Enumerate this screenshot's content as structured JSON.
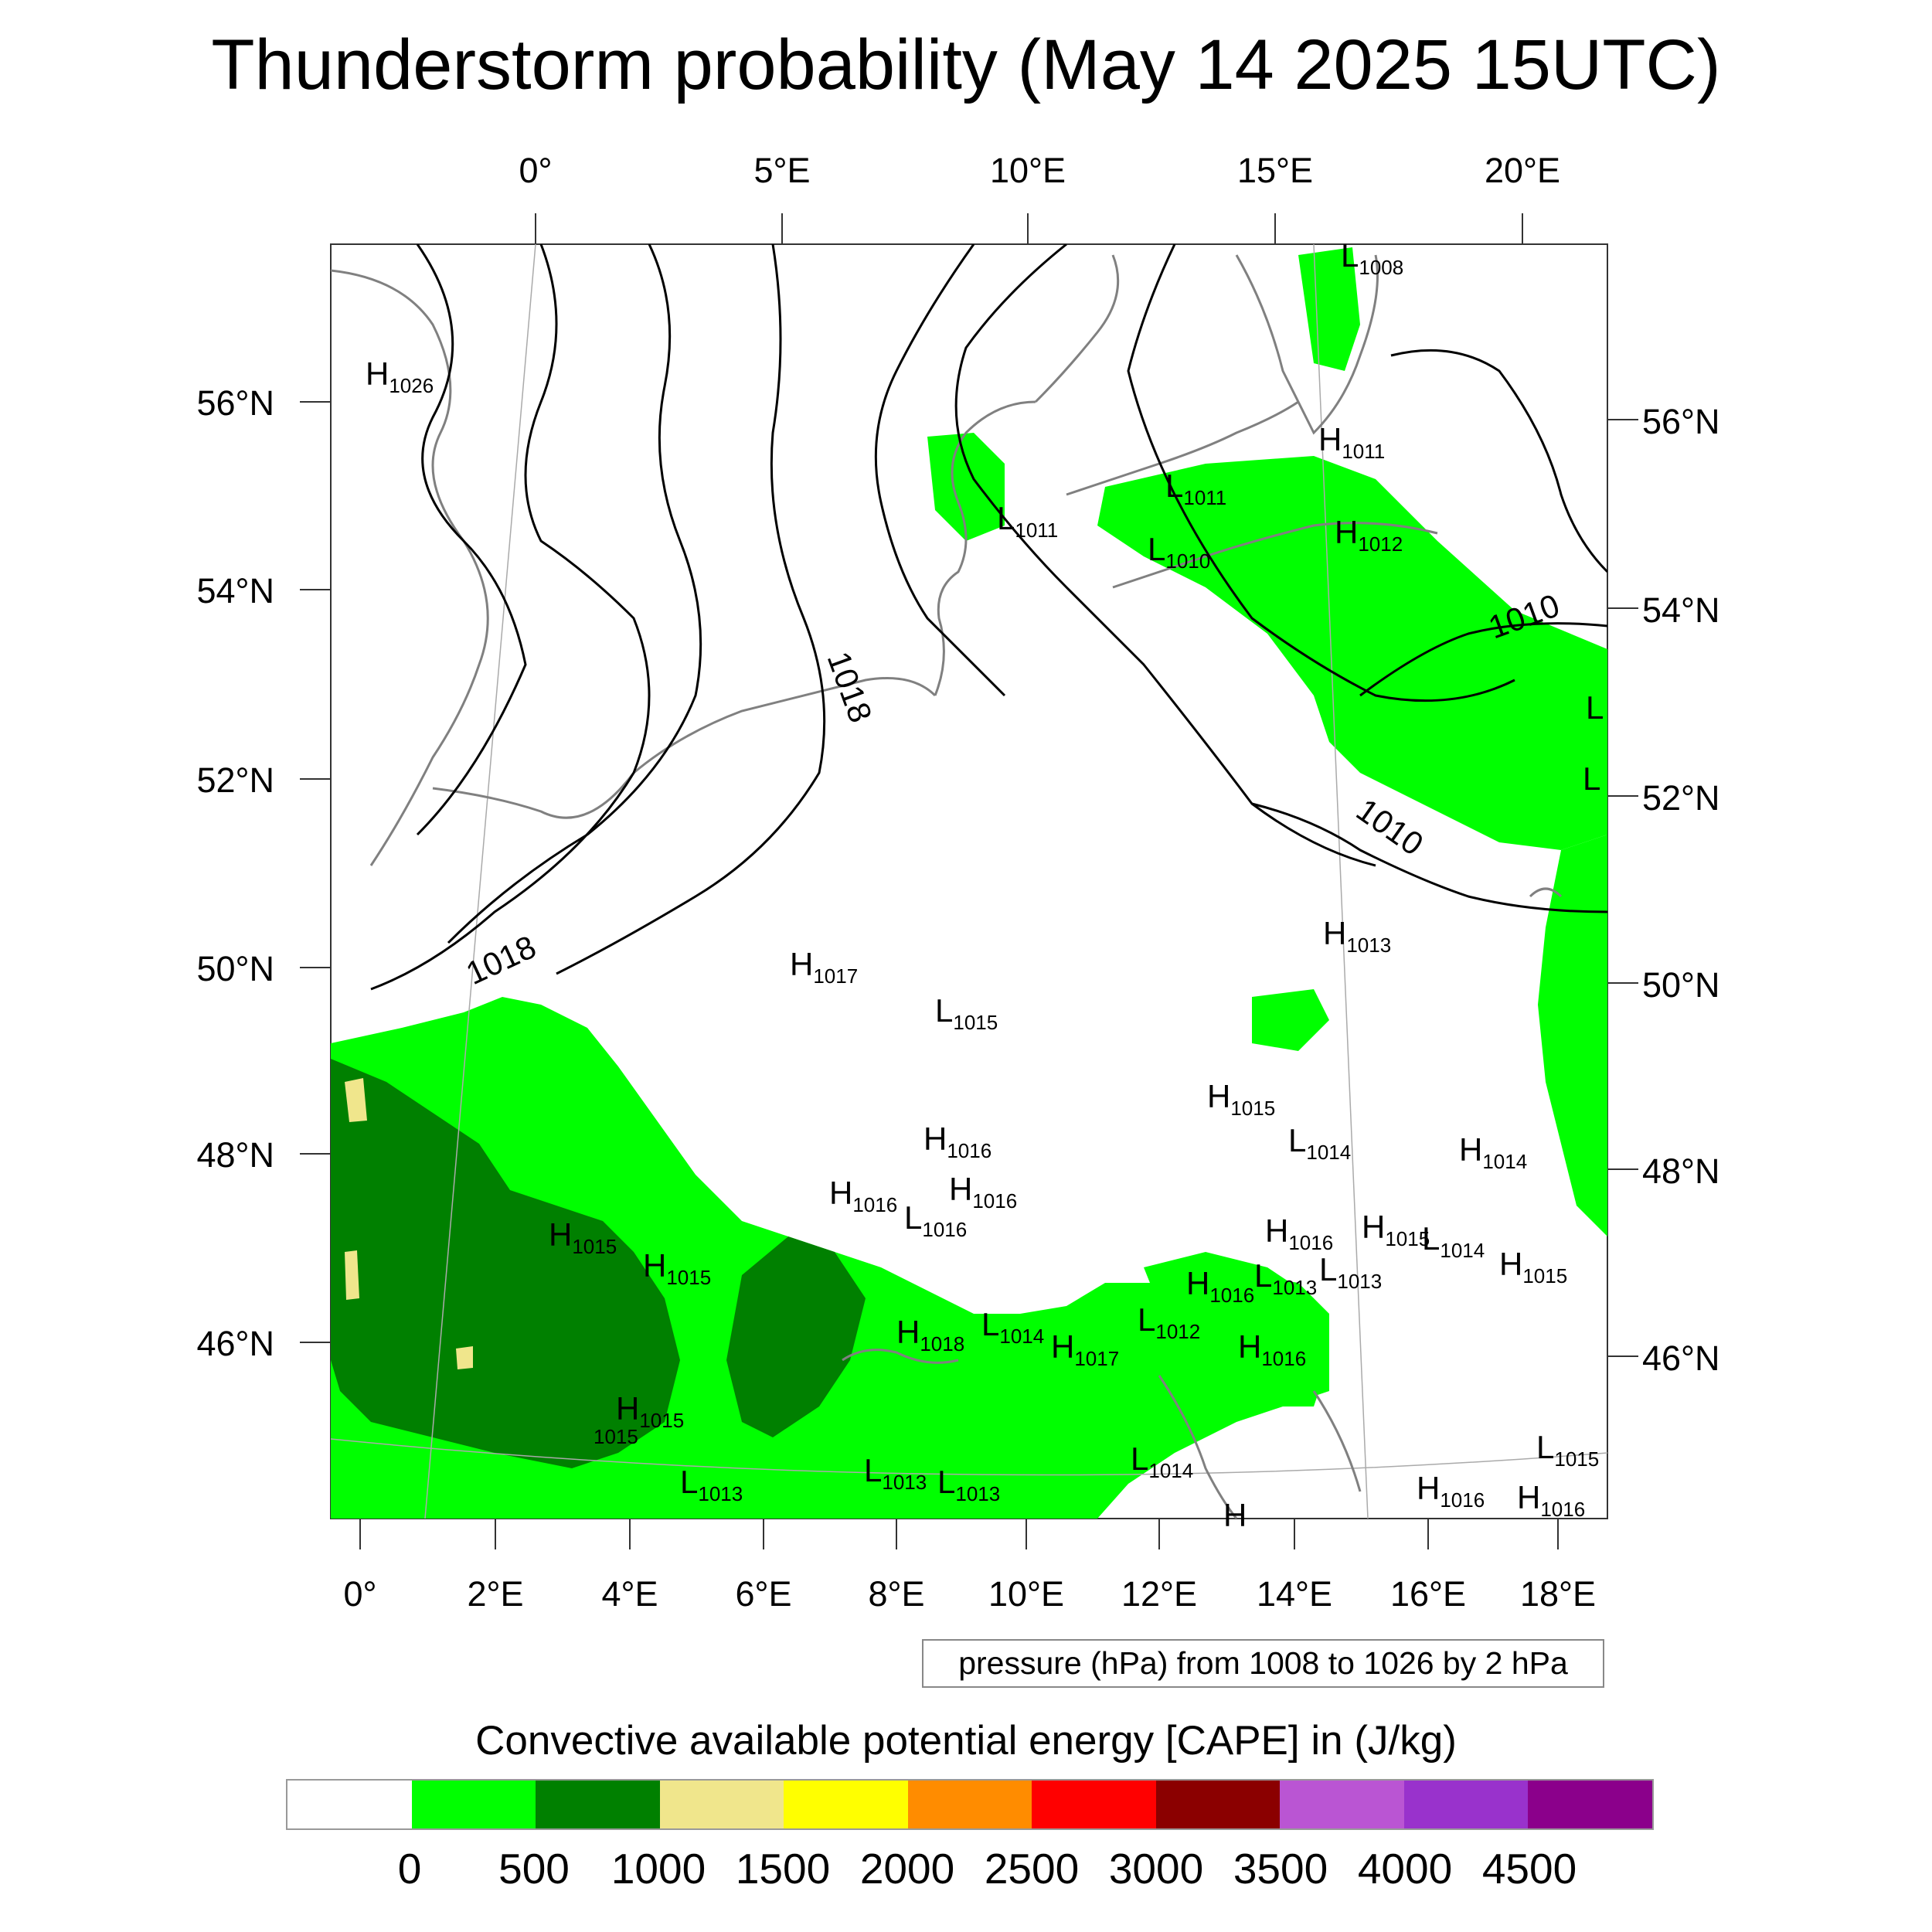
{
  "title": "Thunderstorm probability (May 14 2025 15UTC)",
  "top_lon_labels": [
    "0°",
    "5°E",
    "10°E",
    "15°E",
    "20°E"
  ],
  "bottom_lon_labels": [
    "0°",
    "2°E",
    "4°E",
    "6°E",
    "8°E",
    "10°E",
    "12°E",
    "14°E",
    "16°E",
    "18°E"
  ],
  "left_lat_labels": [
    "56°N",
    "54°N",
    "52°N",
    "50°N",
    "48°N",
    "46°N"
  ],
  "right_lat_labels": [
    "56°N",
    "54°N",
    "52°N",
    "50°N",
    "48°N",
    "46°N"
  ],
  "isobar_labels": [
    "1018",
    "1018",
    "1010",
    "1010"
  ],
  "pressure_centers": [
    {
      "letter": "H",
      "value": "1026"
    },
    {
      "letter": "L",
      "value": "1008"
    },
    {
      "letter": "H",
      "value": "1011"
    },
    {
      "letter": "L",
      "value": "1011"
    },
    {
      "letter": "L",
      "value": "1011"
    },
    {
      "letter": "L",
      "value": "1010"
    },
    {
      "letter": "H",
      "value": "1012"
    },
    {
      "letter": "H",
      "value": "1013"
    },
    {
      "letter": "H",
      "value": "1017"
    },
    {
      "letter": "L",
      "value": "1015"
    },
    {
      "letter": "H",
      "value": "1015"
    },
    {
      "letter": "L",
      "value": "1014"
    },
    {
      "letter": "H",
      "value": "1016"
    },
    {
      "letter": "H",
      "value": "1014"
    },
    {
      "letter": "H",
      "value": "1016"
    },
    {
      "letter": "H",
      "value": "1016"
    },
    {
      "letter": "L",
      "value": "1016"
    },
    {
      "letter": "H",
      "value": "1015"
    },
    {
      "letter": "H",
      "value": "1015"
    },
    {
      "letter": "H",
      "value": "1016"
    },
    {
      "letter": "H",
      "value": "1015"
    },
    {
      "letter": "L",
      "value": "1014"
    },
    {
      "letter": "H",
      "value": "1015"
    },
    {
      "letter": "H",
      "value": "1016"
    },
    {
      "letter": "L",
      "value": "1013"
    },
    {
      "letter": "L",
      "value": "1013"
    },
    {
      "letter": "H",
      "value": "1018"
    },
    {
      "letter": "L",
      "value": "1014"
    },
    {
      "letter": "H",
      "value": "1017"
    },
    {
      "letter": "L",
      "value": "1012"
    },
    {
      "letter": "H",
      "value": "1016"
    },
    {
      "letter": "H",
      "value": "1015"
    },
    {
      "letter": "L",
      "value": "1013"
    },
    {
      "letter": "L",
      "value": "1013"
    },
    {
      "letter": "L",
      "value": "1013"
    },
    {
      "letter": "L",
      "value": "1014"
    },
    {
      "letter": "L",
      "value": "1015"
    },
    {
      "letter": "H",
      "value": "1016"
    },
    {
      "letter": "H",
      "value": "1016"
    }
  ],
  "edge_labels": [
    "L",
    "L",
    "H",
    "1015"
  ],
  "info_box": "pressure (hPa) from 1008 to 1026 by 2 hPa",
  "cape_title": "Convective available potential energy [CAPE] in (J/kg)",
  "colorbar": {
    "colors": [
      "#ffffff",
      "#00ff00",
      "#008000",
      "#f0e68c",
      "#ffff00",
      "#ff8c00",
      "#ff0000",
      "#8b0000",
      "#ba55d3",
      "#9932cc",
      "#8b008b"
    ],
    "tick_labels": [
      "0",
      "500",
      "1000",
      "1500",
      "2000",
      "2500",
      "3000",
      "3500",
      "4000",
      "4500"
    ]
  },
  "colors": {
    "cape_green": "#00ff00",
    "cape_dark_green": "#008000",
    "cape_khaki": "#f0e68c",
    "coastline": "#808080",
    "isobar": "#000000"
  }
}
